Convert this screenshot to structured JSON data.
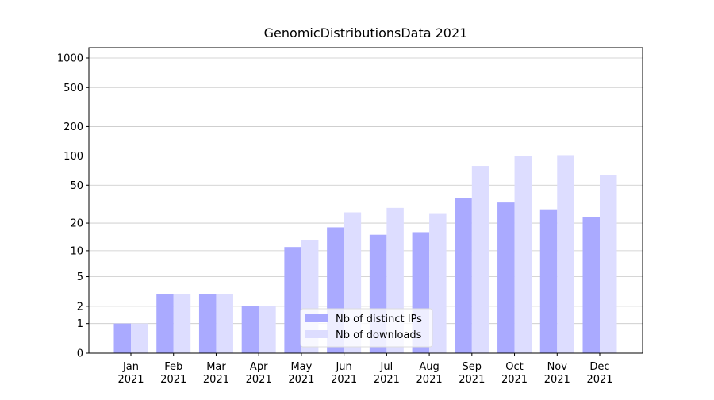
{
  "chart_data": {
    "type": "bar",
    "title": "GenomicDistributionsData 2021",
    "categories": [
      "Jan\n2021",
      "Feb\n2021",
      "Mar\n2021",
      "Apr\n2021",
      "May\n2021",
      "Jun\n2021",
      "Jul\n2021",
      "Aug\n2021",
      "Sep\n2021",
      "Oct\n2021",
      "Nov\n2021",
      "Dec\n2021"
    ],
    "series": [
      {
        "name": "Nb of distinct IPs",
        "color": "#aaaaff",
        "values": [
          1,
          3,
          3,
          2,
          11,
          18,
          15,
          16,
          37,
          33,
          28,
          23
        ]
      },
      {
        "name": "Nb of downloads",
        "color": "#ddddff",
        "values": [
          1,
          3,
          3,
          2,
          13,
          26,
          29,
          25,
          79,
          100,
          102,
          64
        ]
      }
    ],
    "yscale": "log1p",
    "ylim": [
      0,
      1273
    ],
    "yticks": [
      0,
      1,
      2,
      5,
      10,
      20,
      50,
      100,
      200,
      500,
      1000
    ],
    "grid": true,
    "legend": "lower center"
  }
}
